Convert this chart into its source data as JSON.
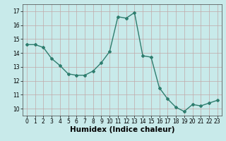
{
  "x": [
    0,
    1,
    2,
    3,
    4,
    5,
    6,
    7,
    8,
    9,
    10,
    11,
    12,
    13,
    14,
    15,
    16,
    17,
    18,
    19,
    20,
    21,
    22,
    23
  ],
  "y": [
    14.6,
    14.6,
    14.4,
    13.6,
    13.1,
    12.5,
    12.4,
    12.4,
    12.7,
    13.3,
    14.1,
    16.6,
    16.5,
    16.9,
    13.8,
    13.7,
    11.5,
    10.7,
    10.1,
    9.8,
    10.3,
    10.2,
    10.4,
    10.6
  ],
  "line_color": "#2e7d6e",
  "marker": "D",
  "marker_size": 2,
  "bg_color": "#c8eaea",
  "grid_color": "#c0a8a8",
  "xlabel": "Humidex (Indice chaleur)",
  "xlim": [
    -0.5,
    23.5
  ],
  "ylim": [
    9.5,
    17.5
  ],
  "yticks": [
    10,
    11,
    12,
    13,
    14,
    15,
    16,
    17
  ],
  "xticks": [
    0,
    1,
    2,
    3,
    4,
    5,
    6,
    7,
    8,
    9,
    10,
    11,
    12,
    13,
    14,
    15,
    16,
    17,
    18,
    19,
    20,
    21,
    22,
    23
  ],
  "tick_fontsize": 5.5,
  "label_fontsize": 7.5,
  "line_width": 1.0
}
